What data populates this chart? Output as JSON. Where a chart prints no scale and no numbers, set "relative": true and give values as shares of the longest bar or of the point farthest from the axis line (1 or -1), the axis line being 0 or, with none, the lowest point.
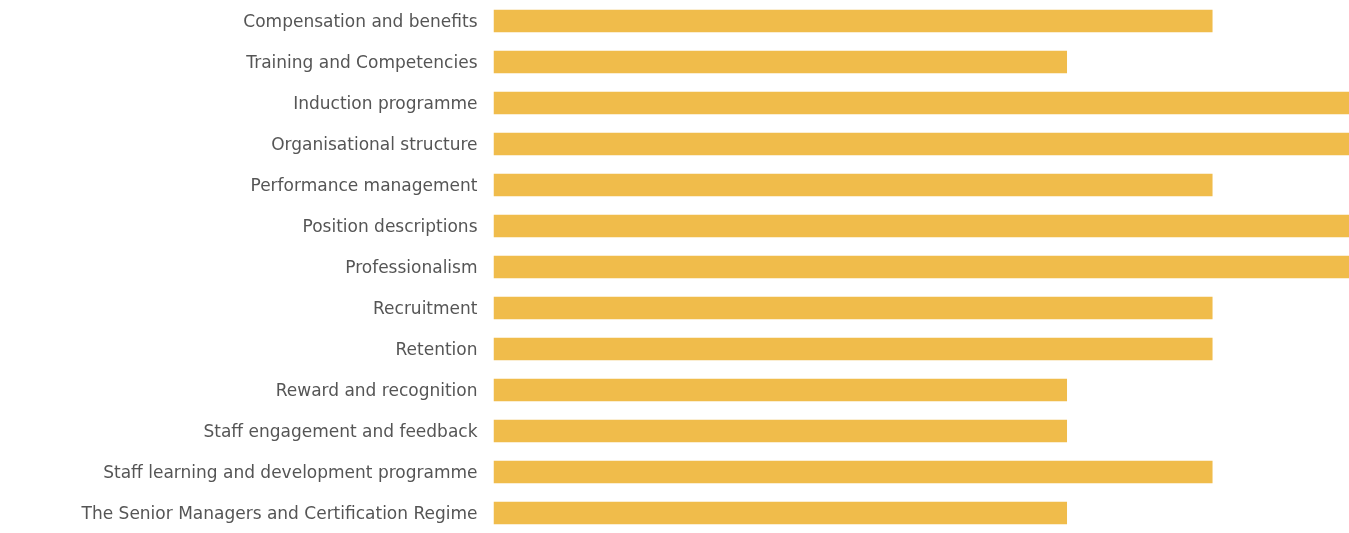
{
  "chart_data": {
    "type": "bar",
    "orientation": "horizontal",
    "relative": true,
    "color": "#f0bc4b",
    "categories": [
      "Compensation and benefits",
      "Training and Competencies",
      "Induction programme",
      "Organisational structure",
      "Performance management",
      "Position descriptions",
      "Professionalism",
      "Recruitment",
      "Retention",
      "Reward and recognition",
      "Staff engagement and feedback",
      "Staff learning and development programme",
      "The Senior Managers and Certification Regime"
    ],
    "values": [
      0.84,
      0.67,
      1,
      1,
      0.84,
      1,
      1,
      0.84,
      0.84,
      0.67,
      0.67,
      0.84,
      0.67
    ],
    "grid": false
  }
}
